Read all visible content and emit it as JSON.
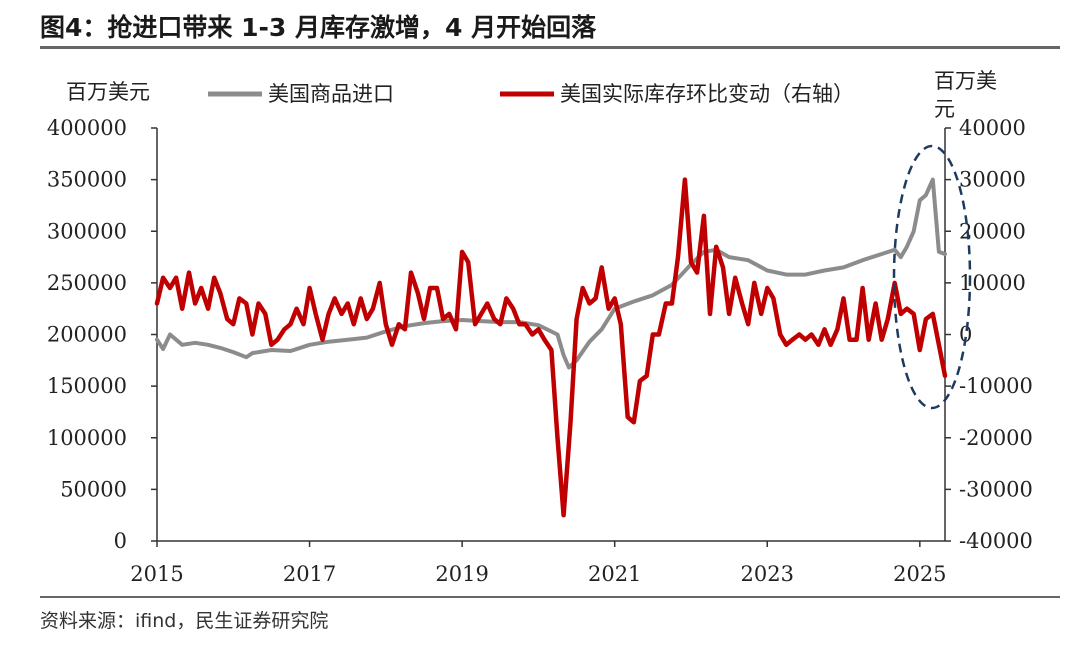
{
  "figure": {
    "title": "图4：抢进口带来 1-3 月库存激增，4 月开始回落",
    "source": "资料来源：ifind，民生证券研究院"
  },
  "chart_data": {
    "type": "line",
    "left_axis_unit": "百万美元",
    "right_axis_unit": "百万美元",
    "x_ticks": [
      "2015",
      "2017",
      "2019",
      "2021",
      "2023",
      "2025"
    ],
    "xlim": [
      2015.0,
      2025.33
    ],
    "y_left_ticks": [
      "400000",
      "350000",
      "300000",
      "250000",
      "200000",
      "150000",
      "100000",
      "50000",
      "0"
    ],
    "y_right_ticks": [
      "40000",
      "30000",
      "20000",
      "10000",
      "0",
      "-10000",
      "-20000",
      "-30000",
      "-40000"
    ],
    "ylim_left": [
      0,
      400000
    ],
    "ylim_right": [
      -40000,
      40000
    ],
    "colors": {
      "imports": "#8c8c8c",
      "inventory": "#c00000",
      "annotation": "#1f3a5f"
    },
    "series": [
      {
        "name": "美国商品进口",
        "axis": "left",
        "points": [
          [
            2015.0,
            195000
          ],
          [
            2015.08,
            186000
          ],
          [
            2015.17,
            200000
          ],
          [
            2015.33,
            190000
          ],
          [
            2015.5,
            192000
          ],
          [
            2015.67,
            190000
          ],
          [
            2015.83,
            187000
          ],
          [
            2016.0,
            183000
          ],
          [
            2016.17,
            178000
          ],
          [
            2016.25,
            182000
          ],
          [
            2016.5,
            185000
          ],
          [
            2016.75,
            184000
          ],
          [
            2017.0,
            190000
          ],
          [
            2017.25,
            193000
          ],
          [
            2017.5,
            195000
          ],
          [
            2017.75,
            197000
          ],
          [
            2018.0,
            203000
          ],
          [
            2018.25,
            208000
          ],
          [
            2018.5,
            211000
          ],
          [
            2018.75,
            213000
          ],
          [
            2019.0,
            214000
          ],
          [
            2019.25,
            213000
          ],
          [
            2019.5,
            212000
          ],
          [
            2019.75,
            212000
          ],
          [
            2020.0,
            209000
          ],
          [
            2020.25,
            200000
          ],
          [
            2020.33,
            180000
          ],
          [
            2020.4,
            168000
          ],
          [
            2020.5,
            175000
          ],
          [
            2020.67,
            193000
          ],
          [
            2020.83,
            205000
          ],
          [
            2021.0,
            225000
          ],
          [
            2021.25,
            232000
          ],
          [
            2021.5,
            238000
          ],
          [
            2021.75,
            248000
          ],
          [
            2022.0,
            268000
          ],
          [
            2022.17,
            280000
          ],
          [
            2022.33,
            282000
          ],
          [
            2022.5,
            275000
          ],
          [
            2022.75,
            272000
          ],
          [
            2023.0,
            262000
          ],
          [
            2023.25,
            258000
          ],
          [
            2023.5,
            258000
          ],
          [
            2023.75,
            262000
          ],
          [
            2024.0,
            265000
          ],
          [
            2024.25,
            272000
          ],
          [
            2024.5,
            278000
          ],
          [
            2024.67,
            282000
          ],
          [
            2024.75,
            275000
          ],
          [
            2024.83,
            285000
          ],
          [
            2024.92,
            300000
          ],
          [
            2025.0,
            330000
          ],
          [
            2025.08,
            335000
          ],
          [
            2025.17,
            350000
          ],
          [
            2025.25,
            280000
          ],
          [
            2025.33,
            278000
          ]
        ]
      },
      {
        "name": "美国实际库存环比变动（右轴）",
        "axis": "right",
        "points": [
          [
            2015.0,
            6000
          ],
          [
            2015.08,
            11000
          ],
          [
            2015.17,
            9000
          ],
          [
            2015.25,
            11000
          ],
          [
            2015.33,
            5000
          ],
          [
            2015.42,
            12000
          ],
          [
            2015.5,
            6000
          ],
          [
            2015.58,
            9000
          ],
          [
            2015.67,
            5000
          ],
          [
            2015.75,
            11000
          ],
          [
            2015.83,
            8000
          ],
          [
            2015.92,
            3000
          ],
          [
            2016.0,
            2000
          ],
          [
            2016.08,
            7000
          ],
          [
            2016.17,
            6000
          ],
          [
            2016.25,
            0
          ],
          [
            2016.33,
            6000
          ],
          [
            2016.42,
            4000
          ],
          [
            2016.5,
            -2000
          ],
          [
            2016.58,
            -1000
          ],
          [
            2016.67,
            1000
          ],
          [
            2016.75,
            2000
          ],
          [
            2016.83,
            5000
          ],
          [
            2016.92,
            2000
          ],
          [
            2017.0,
            9000
          ],
          [
            2017.08,
            4000
          ],
          [
            2017.17,
            -1000
          ],
          [
            2017.25,
            4000
          ],
          [
            2017.33,
            7000
          ],
          [
            2017.42,
            4000
          ],
          [
            2017.5,
            6000
          ],
          [
            2017.58,
            2000
          ],
          [
            2017.67,
            7000
          ],
          [
            2017.75,
            3000
          ],
          [
            2017.83,
            5000
          ],
          [
            2017.92,
            10000
          ],
          [
            2018.0,
            2000
          ],
          [
            2018.08,
            -2000
          ],
          [
            2018.17,
            2000
          ],
          [
            2018.25,
            1000
          ],
          [
            2018.33,
            12000
          ],
          [
            2018.42,
            8000
          ],
          [
            2018.5,
            3000
          ],
          [
            2018.58,
            9000
          ],
          [
            2018.67,
            9000
          ],
          [
            2018.75,
            3000
          ],
          [
            2018.83,
            4000
          ],
          [
            2018.92,
            1000
          ],
          [
            2019.0,
            16000
          ],
          [
            2019.08,
            14000
          ],
          [
            2019.17,
            2000
          ],
          [
            2019.25,
            4000
          ],
          [
            2019.33,
            6000
          ],
          [
            2019.42,
            3000
          ],
          [
            2019.5,
            2000
          ],
          [
            2019.58,
            7000
          ],
          [
            2019.67,
            5000
          ],
          [
            2019.75,
            2000
          ],
          [
            2019.83,
            2000
          ],
          [
            2019.92,
            0
          ],
          [
            2020.0,
            1000
          ],
          [
            2020.08,
            -1000
          ],
          [
            2020.17,
            -3000
          ],
          [
            2020.25,
            -20000
          ],
          [
            2020.33,
            -35000
          ],
          [
            2020.42,
            -17000
          ],
          [
            2020.5,
            3000
          ],
          [
            2020.58,
            9000
          ],
          [
            2020.67,
            6000
          ],
          [
            2020.75,
            7000
          ],
          [
            2020.83,
            13000
          ],
          [
            2020.92,
            5000
          ],
          [
            2021.0,
            7000
          ],
          [
            2021.08,
            2000
          ],
          [
            2021.17,
            -16000
          ],
          [
            2021.25,
            -17000
          ],
          [
            2021.33,
            -9000
          ],
          [
            2021.42,
            -8000
          ],
          [
            2021.5,
            0
          ],
          [
            2021.58,
            0
          ],
          [
            2021.67,
            6000
          ],
          [
            2021.75,
            6000
          ],
          [
            2021.83,
            15000
          ],
          [
            2021.92,
            30000
          ],
          [
            2022.0,
            14000
          ],
          [
            2022.08,
            12000
          ],
          [
            2022.17,
            23000
          ],
          [
            2022.25,
            4000
          ],
          [
            2022.33,
            17000
          ],
          [
            2022.42,
            13000
          ],
          [
            2022.5,
            4000
          ],
          [
            2022.58,
            11000
          ],
          [
            2022.67,
            6000
          ],
          [
            2022.75,
            2000
          ],
          [
            2022.83,
            10000
          ],
          [
            2022.92,
            4000
          ],
          [
            2023.0,
            9000
          ],
          [
            2023.08,
            7000
          ],
          [
            2023.17,
            0
          ],
          [
            2023.25,
            -2000
          ],
          [
            2023.33,
            -1000
          ],
          [
            2023.42,
            0
          ],
          [
            2023.5,
            -1000
          ],
          [
            2023.58,
            0
          ],
          [
            2023.67,
            -2000
          ],
          [
            2023.75,
            1000
          ],
          [
            2023.83,
            -2000
          ],
          [
            2023.92,
            1000
          ],
          [
            2024.0,
            7000
          ],
          [
            2024.08,
            -1000
          ],
          [
            2024.17,
            -1000
          ],
          [
            2024.25,
            9000
          ],
          [
            2024.33,
            -1000
          ],
          [
            2024.42,
            6000
          ],
          [
            2024.5,
            -1000
          ],
          [
            2024.58,
            3000
          ],
          [
            2024.67,
            10000
          ],
          [
            2024.75,
            4000
          ],
          [
            2024.83,
            5000
          ],
          [
            2024.92,
            4000
          ],
          [
            2025.0,
            -3000
          ],
          [
            2025.08,
            3000
          ],
          [
            2025.17,
            4000
          ],
          [
            2025.25,
            -2000
          ],
          [
            2025.33,
            -8000
          ]
        ]
      }
    ]
  }
}
